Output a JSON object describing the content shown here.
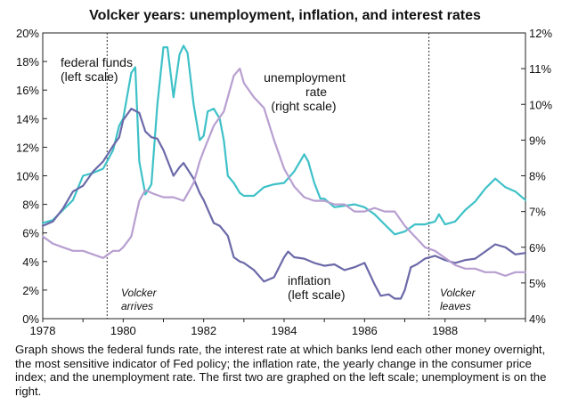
{
  "chart_data": {
    "type": "line",
    "title": "Volcker years: unemployment, inflation, and interest rates",
    "x_ticks": [
      "1978",
      "1980",
      "1982",
      "1984",
      "1986",
      "1988"
    ],
    "xlim": [
      1978.0,
      1990.0
    ],
    "y_left": {
      "lim": [
        0,
        20
      ],
      "ticks": [
        "0%",
        "2%",
        "4%",
        "6%",
        "8%",
        "10%",
        "12%",
        "14%",
        "16%",
        "18%",
        "20%"
      ]
    },
    "y_right": {
      "lim": [
        4,
        12
      ],
      "ticks": [
        "4%",
        "5%",
        "6%",
        "7%",
        "8%",
        "9%",
        "10%",
        "11%",
        "12%"
      ]
    },
    "grid": false,
    "series": [
      {
        "name": "federal funds",
        "axis": "left",
        "color": "#3ec1c8",
        "points": [
          [
            1978.0,
            6.7
          ],
          [
            1978.25,
            6.9
          ],
          [
            1978.5,
            7.6
          ],
          [
            1978.75,
            8.3
          ],
          [
            1979.0,
            10.0
          ],
          [
            1979.25,
            10.2
          ],
          [
            1979.5,
            10.5
          ],
          [
            1979.75,
            11.8
          ],
          [
            1979.9,
            13.5
          ],
          [
            1980.0,
            14.0
          ],
          [
            1980.2,
            17.2
          ],
          [
            1980.3,
            17.6
          ],
          [
            1980.4,
            11.0
          ],
          [
            1980.55,
            8.7
          ],
          [
            1980.7,
            9.4
          ],
          [
            1980.85,
            15.0
          ],
          [
            1981.0,
            19.0
          ],
          [
            1981.1,
            19.0
          ],
          [
            1981.25,
            15.5
          ],
          [
            1981.4,
            18.5
          ],
          [
            1981.5,
            19.1
          ],
          [
            1981.6,
            18.6
          ],
          [
            1981.75,
            15.0
          ],
          [
            1981.9,
            12.5
          ],
          [
            1982.0,
            12.8
          ],
          [
            1982.1,
            14.5
          ],
          [
            1982.25,
            14.7
          ],
          [
            1982.4,
            14.0
          ],
          [
            1982.5,
            12.5
          ],
          [
            1982.6,
            10.0
          ],
          [
            1982.75,
            9.5
          ],
          [
            1982.9,
            8.8
          ],
          [
            1983.0,
            8.6
          ],
          [
            1983.25,
            8.6
          ],
          [
            1983.5,
            9.2
          ],
          [
            1983.75,
            9.4
          ],
          [
            1984.0,
            9.5
          ],
          [
            1984.25,
            10.3
          ],
          [
            1984.5,
            11.5
          ],
          [
            1984.6,
            11.0
          ],
          [
            1984.75,
            9.5
          ],
          [
            1984.9,
            8.4
          ],
          [
            1985.0,
            8.4
          ],
          [
            1985.25,
            7.8
          ],
          [
            1985.5,
            7.9
          ],
          [
            1985.75,
            8.0
          ],
          [
            1986.0,
            7.8
          ],
          [
            1986.25,
            7.3
          ],
          [
            1986.5,
            6.6
          ],
          [
            1986.75,
            5.9
          ],
          [
            1987.0,
            6.1
          ],
          [
            1987.25,
            6.6
          ],
          [
            1987.5,
            6.6
          ],
          [
            1987.75,
            6.8
          ],
          [
            1987.85,
            7.3
          ],
          [
            1988.0,
            6.6
          ],
          [
            1988.25,
            6.8
          ],
          [
            1988.5,
            7.6
          ],
          [
            1988.75,
            8.2
          ],
          [
            1989.0,
            9.1
          ],
          [
            1989.25,
            9.8
          ],
          [
            1989.5,
            9.2
          ],
          [
            1989.75,
            8.9
          ],
          [
            1990.0,
            8.3
          ]
        ]
      },
      {
        "name": "inflation",
        "axis": "left",
        "color": "#6b69a8",
        "points": [
          [
            1978.0,
            6.5
          ],
          [
            1978.25,
            6.8
          ],
          [
            1978.5,
            7.7
          ],
          [
            1978.75,
            8.9
          ],
          [
            1979.0,
            9.3
          ],
          [
            1979.25,
            10.3
          ],
          [
            1979.5,
            11.0
          ],
          [
            1979.75,
            12.1
          ],
          [
            1979.9,
            12.7
          ],
          [
            1980.0,
            13.9
          ],
          [
            1980.2,
            14.7
          ],
          [
            1980.4,
            14.4
          ],
          [
            1980.55,
            13.1
          ],
          [
            1980.7,
            12.7
          ],
          [
            1980.85,
            12.6
          ],
          [
            1981.0,
            11.8
          ],
          [
            1981.25,
            10.0
          ],
          [
            1981.4,
            10.6
          ],
          [
            1981.5,
            10.9
          ],
          [
            1981.75,
            9.8
          ],
          [
            1981.9,
            8.8
          ],
          [
            1982.0,
            8.3
          ],
          [
            1982.25,
            6.7
          ],
          [
            1982.4,
            6.5
          ],
          [
            1982.6,
            5.8
          ],
          [
            1982.75,
            4.3
          ],
          [
            1982.9,
            4.0
          ],
          [
            1983.0,
            3.9
          ],
          [
            1983.25,
            3.4
          ],
          [
            1983.5,
            2.6
          ],
          [
            1983.75,
            2.9
          ],
          [
            1984.0,
            4.3
          ],
          [
            1984.1,
            4.7
          ],
          [
            1984.25,
            4.3
          ],
          [
            1984.5,
            4.2
          ],
          [
            1984.75,
            3.9
          ],
          [
            1985.0,
            3.7
          ],
          [
            1985.25,
            3.8
          ],
          [
            1985.5,
            3.4
          ],
          [
            1985.75,
            3.6
          ],
          [
            1986.0,
            3.9
          ],
          [
            1986.25,
            2.4
          ],
          [
            1986.4,
            1.6
          ],
          [
            1986.6,
            1.7
          ],
          [
            1986.75,
            1.4
          ],
          [
            1986.9,
            1.4
          ],
          [
            1987.0,
            2.0
          ],
          [
            1987.15,
            3.6
          ],
          [
            1987.3,
            3.8
          ],
          [
            1987.5,
            4.2
          ],
          [
            1987.75,
            4.4
          ],
          [
            1988.0,
            4.1
          ],
          [
            1988.25,
            3.9
          ],
          [
            1988.5,
            4.1
          ],
          [
            1988.75,
            4.2
          ],
          [
            1989.0,
            4.7
          ],
          [
            1989.25,
            5.2
          ],
          [
            1989.5,
            5.0
          ],
          [
            1989.75,
            4.5
          ],
          [
            1990.0,
            4.6
          ]
        ]
      },
      {
        "name": "unemployment rate",
        "axis": "right",
        "color": "#b79fd0",
        "points": [
          [
            1978.0,
            6.3
          ],
          [
            1978.25,
            6.1
          ],
          [
            1978.5,
            6.0
          ],
          [
            1978.75,
            5.9
          ],
          [
            1979.0,
            5.9
          ],
          [
            1979.25,
            5.8
          ],
          [
            1979.5,
            5.7
          ],
          [
            1979.75,
            5.9
          ],
          [
            1979.9,
            5.9
          ],
          [
            1980.0,
            6.0
          ],
          [
            1980.2,
            6.3
          ],
          [
            1980.4,
            7.3
          ],
          [
            1980.55,
            7.6
          ],
          [
            1980.75,
            7.5
          ],
          [
            1981.0,
            7.4
          ],
          [
            1981.25,
            7.4
          ],
          [
            1981.5,
            7.3
          ],
          [
            1981.75,
            7.8
          ],
          [
            1981.9,
            8.4
          ],
          [
            1982.0,
            8.7
          ],
          [
            1982.25,
            9.4
          ],
          [
            1982.5,
            9.8
          ],
          [
            1982.75,
            10.8
          ],
          [
            1982.9,
            11.0
          ],
          [
            1983.0,
            10.6
          ],
          [
            1983.25,
            10.2
          ],
          [
            1983.5,
            9.9
          ],
          [
            1983.75,
            9.0
          ],
          [
            1984.0,
            8.2
          ],
          [
            1984.25,
            7.7
          ],
          [
            1984.5,
            7.4
          ],
          [
            1984.75,
            7.3
          ],
          [
            1985.0,
            7.3
          ],
          [
            1985.25,
            7.2
          ],
          [
            1985.5,
            7.2
          ],
          [
            1985.75,
            7.0
          ],
          [
            1986.0,
            7.0
          ],
          [
            1986.25,
            7.1
          ],
          [
            1986.5,
            7.0
          ],
          [
            1986.75,
            7.0
          ],
          [
            1987.0,
            6.6
          ],
          [
            1987.25,
            6.3
          ],
          [
            1987.5,
            6.0
          ],
          [
            1987.75,
            5.9
          ],
          [
            1988.0,
            5.7
          ],
          [
            1988.25,
            5.5
          ],
          [
            1988.5,
            5.4
          ],
          [
            1988.75,
            5.4
          ],
          [
            1989.0,
            5.3
          ],
          [
            1989.25,
            5.3
          ],
          [
            1989.5,
            5.2
          ],
          [
            1989.75,
            5.3
          ],
          [
            1990.0,
            5.3
          ]
        ]
      }
    ],
    "annotations": {
      "fed_funds": [
        "federal funds",
        "(left scale)"
      ],
      "unemployment": [
        "unemployment",
        "rate",
        "(right scale)"
      ],
      "inflation": [
        "inflation",
        "(left scale)"
      ],
      "volcker_arrives": [
        "Volcker",
        "arrives"
      ],
      "volcker_leaves": [
        "Volcker",
        "leaves"
      ]
    },
    "events": {
      "volcker_arrives_x": 1979.6,
      "volcker_leaves_x": 1987.6
    }
  },
  "caption": "Graph shows the federal funds rate, the interest rate at which banks lend each other money overnight, the most sensitive indicator of Fed policy; the inflation rate, the yearly change in the consumer price index; and the unemployment rate. The first two are graphed on the left scale; unemployment is on the right."
}
